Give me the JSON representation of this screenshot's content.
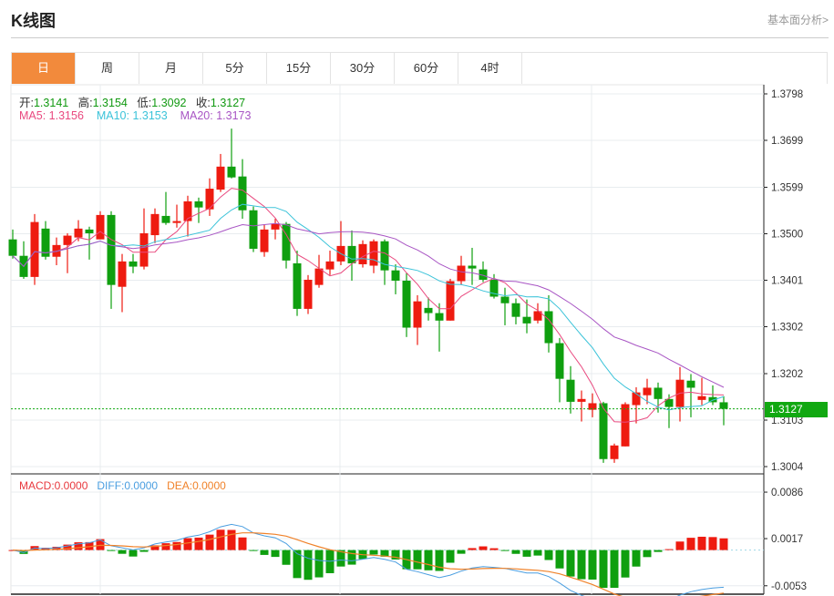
{
  "header": {
    "title": "K线图",
    "fundamentals_link": "基本面分析>"
  },
  "tabs": [
    {
      "label": "日",
      "active": true
    },
    {
      "label": "周"
    },
    {
      "label": "月"
    },
    {
      "label": "5分"
    },
    {
      "label": "15分"
    },
    {
      "label": "30分"
    },
    {
      "label": "60分"
    },
    {
      "label": "4时"
    }
  ],
  "legend": {
    "open_label": "开:",
    "open": "1.3141",
    "high_label": "高:",
    "high": "1.3154",
    "low_label": "低:",
    "low": "1.3092",
    "close_label": "收:",
    "close": "1.3127",
    "ma5_label": "MA5:",
    "ma5": "1.3156",
    "ma10_label": "MA10:",
    "ma10": "1.3153",
    "ma20_label": "MA20:",
    "ma20": "1.3173"
  },
  "macd_legend": {
    "macd_label": "MACD:",
    "macd": "0.0000",
    "diff_label": "DIFF:",
    "diff": "0.0000",
    "dea_label": "DEA:",
    "dea": "0.0000"
  },
  "current_price": "1.3127",
  "colors": {
    "up": "#EE1B10",
    "down": "#0F9F0F",
    "ma5": "#E9497F",
    "ma10": "#3BC3D9",
    "ma20": "#A855C4",
    "diff": "#4A9EE0",
    "dea": "#F0822A",
    "macd_label": "#E8383D",
    "accent_tab": "#F28A3C",
    "price_tag": "#11A811"
  },
  "chart_data": [
    {
      "type": "candlestick",
      "y_ticks": [
        "1.3798",
        "1.3699",
        "1.3599",
        "1.3500",
        "1.3401",
        "1.3302",
        "1.3202",
        "1.3103",
        "1.3004"
      ],
      "ylim": [
        1.3004,
        1.3798
      ],
      "grid": true,
      "ma_periods": [
        5,
        10,
        20
      ],
      "ohlc": [
        [
          1.3488,
          1.3509,
          1.3447,
          1.3453
        ],
        [
          1.3453,
          1.3484,
          1.3404,
          1.3408
        ],
        [
          1.3408,
          1.3542,
          1.3391,
          1.3525
        ],
        [
          1.3511,
          1.3527,
          1.3445,
          1.3451
        ],
        [
          1.3451,
          1.3492,
          1.3433,
          1.3476
        ],
        [
          1.3476,
          1.3501,
          1.3416,
          1.3496
        ],
        [
          1.3492,
          1.3529,
          1.3484,
          1.3511
        ],
        [
          1.3509,
          1.3515,
          1.3445,
          1.3501
        ],
        [
          1.3488,
          1.3548,
          1.3488,
          1.354
        ],
        [
          1.354,
          1.3548,
          1.334,
          1.3391
        ],
        [
          1.3387,
          1.3457,
          1.3333,
          1.3441
        ],
        [
          1.3441,
          1.3457,
          1.3416,
          1.343
        ],
        [
          1.343,
          1.3554,
          1.3424,
          1.3501
        ],
        [
          1.3497,
          1.3554,
          1.348,
          1.3542
        ],
        [
          1.3538,
          1.3589,
          1.3519,
          1.3523
        ],
        [
          1.3523,
          1.3562,
          1.3513,
          1.3527
        ],
        [
          1.3527,
          1.3581,
          1.3494,
          1.3569
        ],
        [
          1.3569,
          1.3577,
          1.3523,
          1.3556
        ],
        [
          1.3552,
          1.3618,
          1.3538,
          1.3596
        ],
        [
          1.3594,
          1.367,
          1.3589,
          1.3643
        ],
        [
          1.3643,
          1.3724,
          1.3618,
          1.362
        ],
        [
          1.3622,
          1.3659,
          1.3532,
          1.355
        ],
        [
          1.355,
          1.3558,
          1.3461,
          1.3468
        ],
        [
          1.3461,
          1.3519,
          1.3451,
          1.3509
        ],
        [
          1.3509,
          1.3532,
          1.3488,
          1.3521
        ],
        [
          1.3521,
          1.3525,
          1.3426,
          1.3443
        ],
        [
          1.3437,
          1.3464,
          1.3325,
          1.334
        ],
        [
          1.334,
          1.3412,
          1.3329,
          1.3402
        ],
        [
          1.3391,
          1.3455,
          1.3385,
          1.3426
        ],
        [
          1.3424,
          1.3464,
          1.3412,
          1.3441
        ],
        [
          1.3441,
          1.3527,
          1.3433,
          1.3474
        ],
        [
          1.3474,
          1.3507,
          1.34,
          1.3437
        ],
        [
          1.3435,
          1.3486,
          1.3428,
          1.3478
        ],
        [
          1.3432,
          1.3488,
          1.3416,
          1.3484
        ],
        [
          1.3484,
          1.3488,
          1.3391,
          1.3422
        ],
        [
          1.3422,
          1.3435,
          1.3371,
          1.34
        ],
        [
          1.34,
          1.3416,
          1.328,
          1.33
        ],
        [
          1.33,
          1.3369,
          1.3263,
          1.3356
        ],
        [
          1.3342,
          1.3364,
          1.3315,
          1.3331
        ],
        [
          1.3331,
          1.3352,
          1.3249,
          1.3315
        ],
        [
          1.3315,
          1.3404,
          1.3315,
          1.3399
        ],
        [
          1.3399,
          1.3453,
          1.3391,
          1.3432
        ],
        [
          1.3432,
          1.347,
          1.3391,
          1.3426
        ],
        [
          1.3424,
          1.3441,
          1.3397,
          1.3402
        ],
        [
          1.3402,
          1.3414,
          1.3362,
          1.3366
        ],
        [
          1.3366,
          1.3385,
          1.3305,
          1.3352
        ],
        [
          1.3352,
          1.3362,
          1.3307,
          1.3323
        ],
        [
          1.3323,
          1.336,
          1.3288,
          1.3309
        ],
        [
          1.3315,
          1.3352,
          1.3309,
          1.3335
        ],
        [
          1.3335,
          1.3369,
          1.3247,
          1.3267
        ],
        [
          1.3267,
          1.3278,
          1.3141,
          1.3191
        ],
        [
          1.3189,
          1.3218,
          1.3117,
          1.3142
        ],
        [
          1.3142,
          1.3166,
          1.31,
          1.3148
        ],
        [
          1.3125,
          1.316,
          1.3109,
          1.3139
        ],
        [
          1.3139,
          1.3142,
          1.3012,
          1.302
        ],
        [
          1.302,
          1.3053,
          1.3012,
          1.3049
        ],
        [
          1.3047,
          1.3141,
          1.3047,
          1.3137
        ],
        [
          1.3135,
          1.3173,
          1.3096,
          1.3162
        ],
        [
          1.3156,
          1.3191,
          1.3137,
          1.3172
        ],
        [
          1.3172,
          1.3183,
          1.3119,
          1.3148
        ],
        [
          1.3148,
          1.3158,
          1.3086,
          1.3131
        ],
        [
          1.3131,
          1.3216,
          1.31,
          1.3189
        ],
        [
          1.3187,
          1.3201,
          1.3109,
          1.3172
        ],
        [
          1.3146,
          1.3193,
          1.3135,
          1.3154
        ],
        [
          1.3152,
          1.3177,
          1.3135,
          1.3141
        ],
        [
          1.3141,
          1.3154,
          1.3092,
          1.3127
        ]
      ]
    },
    {
      "type": "bar+line",
      "indicator": "MACD",
      "y_ticks": [
        "0.0086",
        "0.0017",
        "-0.0053"
      ],
      "ylim": [
        -0.0053,
        0.0086
      ],
      "series": [
        {
          "name": "MACD"
        },
        {
          "name": "DIFF"
        },
        {
          "name": "DEA"
        }
      ]
    }
  ]
}
